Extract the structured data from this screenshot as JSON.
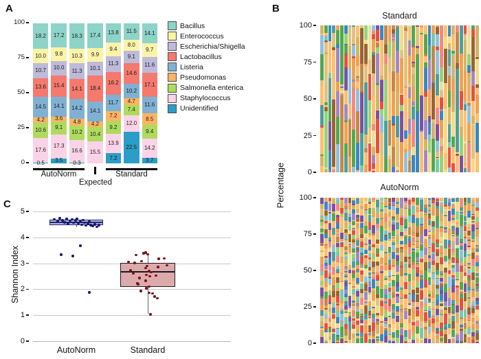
{
  "chart_data": [
    {
      "id": "A",
      "panel_label": "A",
      "type": "bar",
      "subtype": "stacked",
      "ylim": [
        0,
        100
      ],
      "yticks": [
        0,
        25,
        50,
        75,
        100
      ],
      "legend_position": "right",
      "legend": [
        {
          "label": "Bacillus",
          "color": "#8dd3c7"
        },
        {
          "label": "Enterococcus",
          "color": "#fbf3a8"
        },
        {
          "label": "Escherichia/Shigella",
          "color": "#bebada"
        },
        {
          "label": "Lactobacillus",
          "color": "#f5796d"
        },
        {
          "label": "Listeria",
          "color": "#80b1d3"
        },
        {
          "label": "Pseudomonas",
          "color": "#fdb462"
        },
        {
          "label": "Salmonella enterica",
          "color": "#aedb5f"
        },
        {
          "label": "Staphylococcus",
          "color": "#fbd3e6"
        },
        {
          "label": "Unidentified",
          "color": "#2b9dc7"
        }
      ],
      "stack_order_note": "values listed top-of-bar first (Bacillus) to bottom (Unidentified)",
      "groups": [
        {
          "label": "AutoNorm",
          "bar_indexes": [
            0,
            1,
            2
          ]
        },
        {
          "label": "Expected",
          "bar_indexes": [
            3
          ]
        },
        {
          "label": "Standard",
          "bar_indexes": [
            4,
            5,
            6
          ]
        }
      ],
      "bars": [
        {
          "group": "AutoNorm",
          "values": [
            18.2,
            10.0,
            10.7,
            13.6,
            14.5,
            4.2,
            10.6,
            17.6,
            0.5
          ]
        },
        {
          "group": "AutoNorm",
          "values": [
            17.2,
            9.8,
            10.0,
            15.4,
            14.1,
            3.6,
            9.1,
            17.3,
            3.5
          ]
        },
        {
          "group": "AutoNorm",
          "values": [
            18.3,
            10.3,
            11.3,
            14.1,
            14.2,
            4.8,
            10.2,
            16.6,
            0.3
          ]
        },
        {
          "group": "Expected",
          "values": [
            17.4,
            9.9,
            10.1,
            18.4,
            14.1,
            4.2,
            10.4,
            15.5
          ]
        },
        {
          "group": "Standard",
          "values": [
            13.8,
            9.4,
            11.3,
            16.2,
            11.7,
            7.2,
            9.2,
            13.9,
            7.2
          ]
        },
        {
          "group": "Standard",
          "values": [
            11.5,
            8.0,
            9.1,
            14.6,
            10.2,
            4.7,
            7.4,
            12.0,
            22.5
          ]
        },
        {
          "group": "Standard",
          "values": [
            14.1,
            9.7,
            11.6,
            17.1,
            11.6,
            8.5,
            9.4,
            14.2,
            3.7
          ]
        }
      ]
    },
    {
      "id": "B",
      "panel_label": "B",
      "type": "bar",
      "subtype": "stacked-many-samples",
      "ylabel": "Percentage",
      "charts": [
        {
          "title": "Standard",
          "yticks": [
            0,
            25,
            50,
            75,
            100
          ],
          "ylim": [
            0,
            100
          ],
          "gen": {
            "n_bars": 40,
            "segments_min": 7,
            "segments_max": 15,
            "size_exponent": 2.2,
            "size_floor": 0.02,
            "seed": 13
          }
        },
        {
          "title": "AutoNorm",
          "yticks": [
            0,
            25,
            50,
            75,
            100
          ],
          "ylim": [
            0,
            100
          ],
          "gen": {
            "n_bars": 40,
            "segments_min": 30,
            "segments_max": 52,
            "size_exponent": 1.8,
            "size_floor": 0.08,
            "seed": 99
          }
        }
      ],
      "palette": [
        "#d8b365",
        "#e0c27e",
        "#f2a04e",
        "#fdbf6f",
        "#f7da84",
        "#e94f3f",
        "#f48a7c",
        "#7a52a0",
        "#a188c4",
        "#4f9e9b",
        "#79c7ad",
        "#52a84f",
        "#97d277",
        "#3c87c0",
        "#8fc1de",
        "#9a6430",
        "#c08a4a",
        "#e8e19a"
      ],
      "palette_weights": [
        0.12,
        0.08,
        0.12,
        0.12,
        0.05,
        0.07,
        0.05,
        0.06,
        0.05,
        0.07,
        0.05,
        0.06,
        0.04,
        0.06,
        0.05,
        0.06,
        0.04,
        0.03
      ]
    },
    {
      "id": "C",
      "panel_label": "C",
      "type": "box",
      "ylabel": "Shannon Index",
      "ylim": [
        0,
        5
      ],
      "yticks": [
        0,
        1,
        2,
        3,
        4,
        5
      ],
      "grid": "horizontal",
      "groups": [
        {
          "label": "AutoNorm",
          "fill": "#b4bade",
          "stroke": "#23236e",
          "point_color": "#191970",
          "box": {
            "q1": 4.47,
            "median": 4.57,
            "q3": 4.68,
            "whisker_low": 4.38,
            "whisker_high": 4.75
          },
          "points": [
            [
              -32,
              4.7
            ],
            [
              -27,
              4.63
            ],
            [
              -24,
              4.74
            ],
            [
              -20,
              4.66
            ],
            [
              -17,
              4.58
            ],
            [
              -14,
              4.71
            ],
            [
              -12,
              4.52
            ],
            [
              -9,
              4.64
            ],
            [
              -6,
              4.7
            ],
            [
              -4,
              4.57
            ],
            [
              -1,
              4.66
            ],
            [
              1,
              4.73
            ],
            [
              3,
              4.55
            ],
            [
              6,
              4.61
            ],
            [
              8,
              4.49
            ],
            [
              10,
              4.67
            ],
            [
              12,
              4.57
            ],
            [
              14,
              4.45
            ],
            [
              17,
              4.52
            ],
            [
              19,
              4.6
            ],
            [
              21,
              4.47
            ],
            [
              24,
              4.43
            ],
            [
              27,
              4.5
            ],
            [
              30,
              4.4
            ],
            [
              33,
              4.47
            ],
            [
              6,
              3.68
            ],
            [
              -22,
              3.33
            ],
            [
              -5,
              3.28
            ],
            [
              19,
              1.88
            ]
          ]
        },
        {
          "label": "Standard",
          "fill": "#dcaaad",
          "stroke": "#1a1a1a",
          "point_color": "#7c1113",
          "box": {
            "q1": 2.08,
            "median": 2.67,
            "q3": 3.02,
            "whisker_low": 1.05,
            "whisker_high": 3.35
          },
          "points": [
            [
              -17,
              3.32
            ],
            [
              -6,
              3.39
            ],
            [
              -3,
              3.41
            ],
            [
              0,
              3.35
            ],
            [
              16,
              3.17
            ],
            [
              -9,
              3.08
            ],
            [
              -19,
              3.02
            ],
            [
              24,
              3.18
            ],
            [
              -28,
              3.05
            ],
            [
              -1,
              2.9
            ],
            [
              15,
              2.86
            ],
            [
              -3,
              2.81
            ],
            [
              28,
              2.92
            ],
            [
              -25,
              2.72
            ],
            [
              2,
              2.7
            ],
            [
              5,
              2.66
            ],
            [
              -21,
              2.61
            ],
            [
              -2,
              2.55
            ],
            [
              3,
              2.5
            ],
            [
              -12,
              2.43
            ],
            [
              -3,
              2.33
            ],
            [
              -15,
              2.22
            ],
            [
              -14,
              2.2
            ],
            [
              2,
              2.1
            ],
            [
              -2,
              2.04
            ],
            [
              -10,
              1.93
            ],
            [
              2,
              1.86
            ],
            [
              7,
              1.84
            ],
            [
              10,
              1.72
            ],
            [
              14,
              1.65
            ],
            [
              12,
              2.52
            ],
            [
              4,
              1.03
            ]
          ]
        }
      ]
    }
  ]
}
